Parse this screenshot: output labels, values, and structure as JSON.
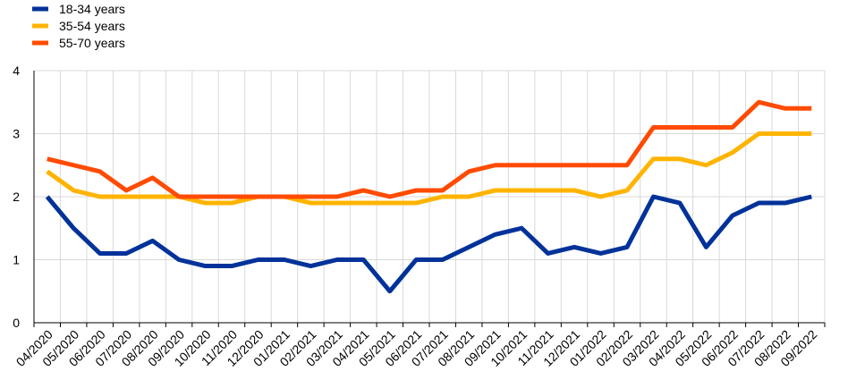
{
  "chart_data": {
    "type": "line",
    "title": "",
    "xlabel": "",
    "ylabel": "",
    "ylim": [
      0,
      4
    ],
    "yticks": [
      "0",
      "1",
      "2",
      "3",
      "4"
    ],
    "grid": true,
    "legend_position": "top-left",
    "categories": [
      "04/2020",
      "05/2020",
      "06/2020",
      "07/2020",
      "08/2020",
      "09/2020",
      "10/2020",
      "11/2020",
      "12/2020",
      "01/2021",
      "02/2021",
      "03/2021",
      "04/2021",
      "05/2021",
      "06/2021",
      "07/2021",
      "08/2021",
      "09/2021",
      "10/2021",
      "11/2021",
      "12/2021",
      "01/2022",
      "02/2022",
      "03/2022",
      "04/2022",
      "05/2022",
      "06/2022",
      "07/2022",
      "08/2022",
      "09/2022"
    ],
    "series": [
      {
        "name": "18-34 years",
        "color": "#003299",
        "values": [
          2.0,
          1.5,
          1.1,
          1.1,
          1.3,
          1.0,
          0.9,
          0.9,
          1.0,
          1.0,
          0.9,
          1.0,
          1.0,
          0.5,
          1.0,
          1.0,
          1.2,
          1.4,
          1.5,
          1.1,
          1.2,
          1.1,
          1.2,
          2.0,
          1.9,
          1.2,
          1.7,
          1.9,
          1.9,
          2.0
        ]
      },
      {
        "name": "35-54 years",
        "color": "#FFB400",
        "values": [
          2.4,
          2.1,
          2.0,
          2.0,
          2.0,
          2.0,
          1.9,
          1.9,
          2.0,
          2.0,
          1.9,
          1.9,
          1.9,
          1.9,
          1.9,
          2.0,
          2.0,
          2.1,
          2.1,
          2.1,
          2.1,
          2.0,
          2.1,
          2.6,
          2.6,
          2.5,
          2.7,
          3.0,
          3.0,
          3.0
        ]
      },
      {
        "name": "55-70 years",
        "color": "#FF4B00",
        "values": [
          2.6,
          2.5,
          2.4,
          2.1,
          2.3,
          2.0,
          2.0,
          2.0,
          2.0,
          2.0,
          2.0,
          2.0,
          2.1,
          2.0,
          2.1,
          2.1,
          2.4,
          2.5,
          2.5,
          2.5,
          2.5,
          2.5,
          2.5,
          3.1,
          3.1,
          3.1,
          3.1,
          3.5,
          3.4,
          3.4
        ]
      }
    ]
  }
}
